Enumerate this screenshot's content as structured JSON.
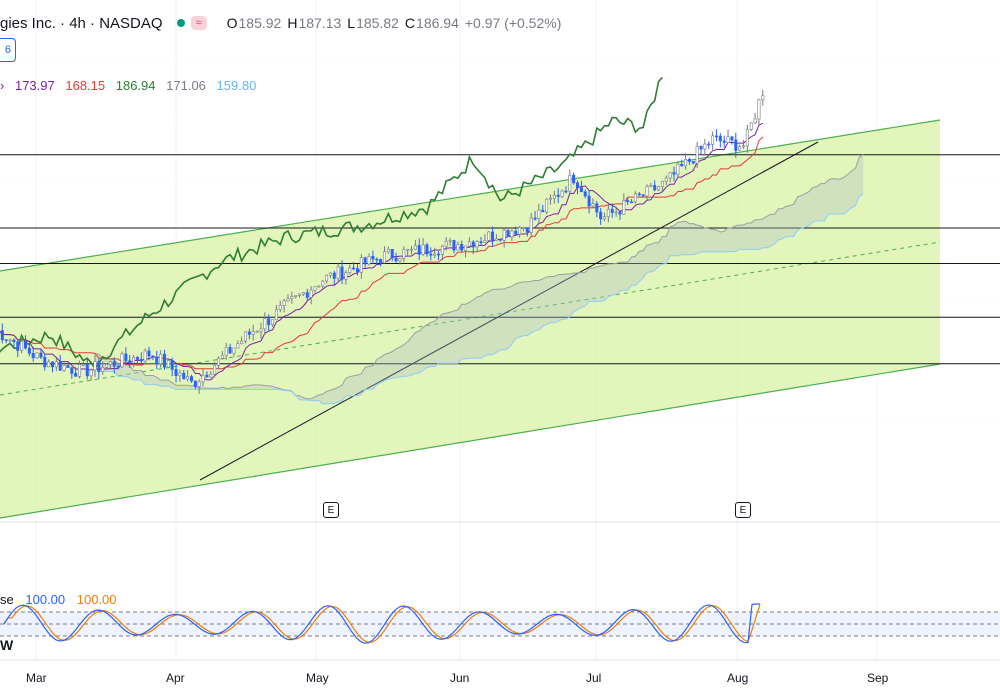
{
  "header": {
    "symbol": "gies Inc. · 4h · NASDAQ",
    "pill": "≈",
    "open_label": "O",
    "open": "185.92",
    "high_label": "H",
    "high": "187.13",
    "low_label": "L",
    "low": "185.82",
    "close_label": "C",
    "close": "186.94",
    "change": "+0.97 (+0.52%)",
    "badge": "6"
  },
  "ichimoku_values": [
    {
      "text": "173.97",
      "color": "#7b1fa2"
    },
    {
      "text": "168.15",
      "color": "#e53935"
    },
    {
      "text": "186.94",
      "color": "#2e7d32"
    },
    {
      "text": "171.06",
      "color": "#787b86"
    },
    {
      "text": "159.80",
      "color": "#64b5f6"
    }
  ],
  "stoch": {
    "name": "se",
    "k": "100.00",
    "d": "100.00",
    "w_label": "W"
  },
  "earnings_marker": "E",
  "colors": {
    "up": "#787b86",
    "down": "#2962ff",
    "lagging": "#2e7d32",
    "conversion": "#7b1fa2",
    "base": "#e53935",
    "spanA": "#9e9e9e",
    "spanB": "#90caf9",
    "channel": "#4caf50",
    "channel_fill": "#d8f2a4",
    "stoch_k": "#2962ff",
    "stoch_d": "#f57c00"
  },
  "chart_data": {
    "type": "candlestick",
    "x_ticks": [
      "Mar",
      "Apr",
      "May",
      "Jun",
      "Jul",
      "Aug",
      "Sep"
    ],
    "ylim": [
      120,
      192
    ],
    "price_pivots": [
      [
        "Feb 20",
        148
      ],
      [
        "Mar 1",
        143
      ],
      [
        "Mar 10",
        141
      ],
      [
        "Mar 25",
        144
      ],
      [
        "Apr 3",
        139
      ],
      [
        "Apr 15",
        147
      ],
      [
        "May 1",
        156
      ],
      [
        "May 15",
        160
      ],
      [
        "Jun 1",
        162
      ],
      [
        "Jun 15",
        165
      ],
      [
        "Jun 25",
        173
      ],
      [
        "Jul 1",
        166
      ],
      [
        "Jul 15",
        172
      ],
      [
        "Jul 25",
        179
      ],
      [
        "Aug 1",
        178
      ],
      [
        "Aug 5",
        186.94
      ]
    ],
    "horizontal_levels": [
      176.5,
      164.5,
      158.7,
      149.9,
      142.3
    ],
    "stoch_levels": [
      80,
      50,
      20
    ],
    "stoch_range": [
      0,
      100
    ]
  }
}
